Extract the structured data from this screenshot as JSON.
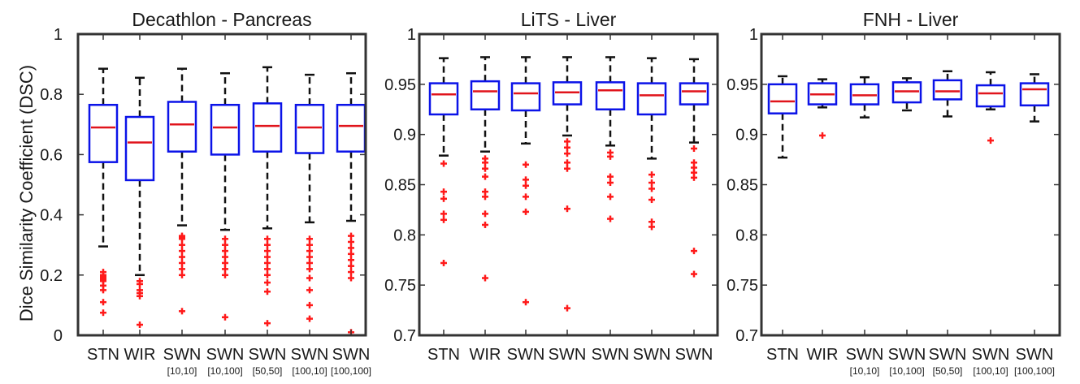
{
  "figure": {
    "ylabel": "Dice Similarity Coefficient (DSC)",
    "colors": {
      "box": "#0b13e8",
      "median": "#e0141c",
      "whisker": "#111111",
      "outlier": "#ff1a1a",
      "axis": "#333333"
    }
  },
  "chart_data": [
    {
      "type": "box",
      "title": "Decathlon - Pancreas",
      "ylabel": "Dice Similarity Coefficient (DSC)",
      "ylim": [
        0,
        1
      ],
      "yticks": [
        0,
        0.2,
        0.4,
        0.6,
        0.8,
        1
      ],
      "ytick_labels": [
        "0",
        "0.2",
        "0.4",
        "0.6",
        "0.8",
        "1"
      ],
      "categories": [
        "STN",
        "WIR",
        "SWN",
        "SWN",
        "SWN",
        "SWN",
        "SWN"
      ],
      "sublabels": [
        "",
        "",
        "[10,10]",
        "[10,100]",
        "[50,50]",
        "[100,10]",
        "[100,100]"
      ],
      "boxes": [
        {
          "q1": 0.575,
          "median": 0.69,
          "q3": 0.765,
          "whisker_low": 0.295,
          "whisker_high": 0.885,
          "outliers": [
            0.21,
            0.2,
            0.195,
            0.19,
            0.185,
            0.18,
            0.165,
            0.15,
            0.11,
            0.075
          ]
        },
        {
          "q1": 0.515,
          "median": 0.64,
          "q3": 0.725,
          "whisker_low": 0.2,
          "whisker_high": 0.855,
          "outliers": [
            0.18,
            0.17,
            0.15,
            0.14,
            0.13,
            0.035
          ]
        },
        {
          "q1": 0.61,
          "median": 0.7,
          "q3": 0.775,
          "whisker_low": 0.365,
          "whisker_high": 0.885,
          "outliers": [
            0.33,
            0.325,
            0.32,
            0.3,
            0.28,
            0.26,
            0.24,
            0.22,
            0.2,
            0.08
          ]
        },
        {
          "q1": 0.6,
          "median": 0.69,
          "q3": 0.765,
          "whisker_low": 0.35,
          "whisker_high": 0.87,
          "outliers": [
            0.32,
            0.3,
            0.28,
            0.26,
            0.24,
            0.22,
            0.2,
            0.06
          ]
        },
        {
          "q1": 0.61,
          "median": 0.695,
          "q3": 0.77,
          "whisker_low": 0.355,
          "whisker_high": 0.89,
          "outliers": [
            0.32,
            0.3,
            0.28,
            0.26,
            0.24,
            0.22,
            0.2,
            0.175,
            0.145,
            0.04
          ]
        },
        {
          "q1": 0.605,
          "median": 0.69,
          "q3": 0.765,
          "whisker_low": 0.375,
          "whisker_high": 0.865,
          "outliers": [
            0.32,
            0.3,
            0.28,
            0.26,
            0.24,
            0.22,
            0.19,
            0.15,
            0.1,
            0.055
          ]
        },
        {
          "q1": 0.61,
          "median": 0.695,
          "q3": 0.765,
          "whisker_low": 0.38,
          "whisker_high": 0.87,
          "outliers": [
            0.33,
            0.31,
            0.29,
            0.27,
            0.25,
            0.23,
            0.21,
            0.19,
            0.01
          ]
        }
      ]
    },
    {
      "type": "box",
      "title": "LiTS - Liver",
      "ylim": [
        0.7,
        1
      ],
      "yticks": [
        0.7,
        0.75,
        0.8,
        0.85,
        0.9,
        0.95,
        1
      ],
      "ytick_labels": [
        "0.7",
        "0.75",
        "0.8",
        "0.85",
        "0.9",
        "0.95",
        "1"
      ],
      "categories": [
        "STN",
        "WIR",
        "SWN",
        "SWN",
        "SWN",
        "SWN",
        "SWN"
      ],
      "sublabels": [
        "",
        "",
        "",
        "",
        "",
        "",
        ""
      ],
      "boxes": [
        {
          "q1": 0.92,
          "median": 0.94,
          "q3": 0.951,
          "whisker_low": 0.879,
          "whisker_high": 0.976,
          "outliers": [
            0.871,
            0.843,
            0.836,
            0.821,
            0.815,
            0.772
          ]
        },
        {
          "q1": 0.925,
          "median": 0.943,
          "q3": 0.953,
          "whisker_low": 0.883,
          "whisker_high": 0.977,
          "outliers": [
            0.876,
            0.872,
            0.866,
            0.858,
            0.843,
            0.838,
            0.821,
            0.81,
            0.757
          ]
        },
        {
          "q1": 0.924,
          "median": 0.941,
          "q3": 0.951,
          "whisker_low": 0.891,
          "whisker_high": 0.977,
          "outliers": [
            0.87,
            0.855,
            0.849,
            0.838,
            0.823,
            0.733
          ]
        },
        {
          "q1": 0.93,
          "median": 0.942,
          "q3": 0.952,
          "whisker_low": 0.899,
          "whisker_high": 0.977,
          "outliers": [
            0.893,
            0.887,
            0.881,
            0.872,
            0.866,
            0.826,
            0.727
          ]
        },
        {
          "q1": 0.925,
          "median": 0.944,
          "q3": 0.952,
          "whisker_low": 0.889,
          "whisker_high": 0.977,
          "outliers": [
            0.882,
            0.878,
            0.858,
            0.852,
            0.838,
            0.816
          ]
        },
        {
          "q1": 0.92,
          "median": 0.939,
          "q3": 0.951,
          "whisker_low": 0.876,
          "whisker_high": 0.976,
          "outliers": [
            0.86,
            0.852,
            0.846,
            0.835,
            0.813,
            0.808
          ]
        },
        {
          "q1": 0.93,
          "median": 0.943,
          "q3": 0.951,
          "whisker_low": 0.892,
          "whisker_high": 0.975,
          "outliers": [
            0.886,
            0.872,
            0.867,
            0.862,
            0.857,
            0.784,
            0.761
          ]
        }
      ]
    },
    {
      "type": "box",
      "title": "FNH - Liver",
      "ylim": [
        0.7,
        1
      ],
      "yticks": [
        0.7,
        0.75,
        0.8,
        0.85,
        0.9,
        0.95,
        1
      ],
      "ytick_labels": [
        "0.7",
        "0.75",
        "0.8",
        "0.85",
        "0.9",
        "0.95",
        "1"
      ],
      "categories": [
        "STN",
        "WIR",
        "SWN",
        "SWN",
        "SWN",
        "SWN",
        "SWN"
      ],
      "sublabels": [
        "",
        "",
        "[10,10]",
        "[10,100]",
        "[50,50]",
        "[100,10]",
        "[100,100]"
      ],
      "boxes": [
        {
          "q1": 0.921,
          "median": 0.933,
          "q3": 0.95,
          "whisker_low": 0.877,
          "whisker_high": 0.958,
          "outliers": []
        },
        {
          "q1": 0.93,
          "median": 0.94,
          "q3": 0.951,
          "whisker_low": 0.927,
          "whisker_high": 0.955,
          "outliers": [
            0.899
          ]
        },
        {
          "q1": 0.93,
          "median": 0.939,
          "q3": 0.95,
          "whisker_low": 0.917,
          "whisker_high": 0.957,
          "outliers": []
        },
        {
          "q1": 0.932,
          "median": 0.943,
          "q3": 0.952,
          "whisker_low": 0.924,
          "whisker_high": 0.956,
          "outliers": []
        },
        {
          "q1": 0.935,
          "median": 0.943,
          "q3": 0.954,
          "whisker_low": 0.918,
          "whisker_high": 0.963,
          "outliers": []
        },
        {
          "q1": 0.928,
          "median": 0.941,
          "q3": 0.949,
          "whisker_low": 0.925,
          "whisker_high": 0.962,
          "outliers": [
            0.894
          ]
        },
        {
          "q1": 0.929,
          "median": 0.945,
          "q3": 0.951,
          "whisker_low": 0.913,
          "whisker_high": 0.96,
          "outliers": []
        }
      ]
    }
  ]
}
